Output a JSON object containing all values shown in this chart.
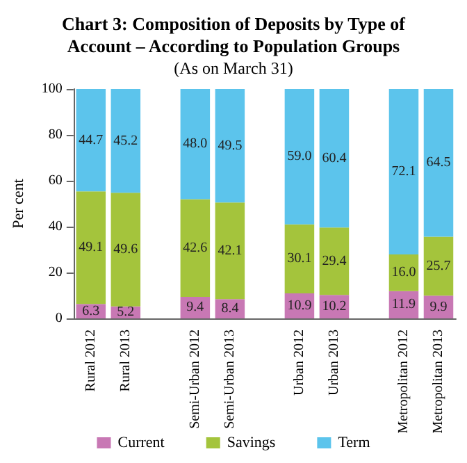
{
  "chart_data": {
    "type": "bar",
    "title": "Chart 3: Composition of Deposits by Type of Account – According to Population Groups",
    "subtitle": "(As on March 31)",
    "ylabel": "Per cent",
    "categories": [
      "Rural 2012",
      "Rural 2013",
      null,
      "Semi-Urban 2012",
      "Semi-Urban 2013",
      null,
      "Urban 2012",
      "Urban 2013",
      null,
      "Metropolitan 2012",
      "Metropolitan 2013"
    ],
    "stacked": true,
    "ylim": [
      0,
      100
    ],
    "yticks": [
      0,
      20,
      40,
      60,
      80,
      100
    ],
    "grid": false,
    "legend": "bottom",
    "series": [
      {
        "name": "Current",
        "color": "#c878b4",
        "values": [
          6.3,
          5.2,
          null,
          9.4,
          8.4,
          null,
          10.9,
          10.2,
          null,
          11.9,
          9.9
        ],
        "value_labels": [
          "6.3",
          "5.2",
          null,
          "9.4",
          "8.4",
          null,
          "10.9",
          "10.2",
          null,
          "11.9",
          "9.9"
        ]
      },
      {
        "name": "Savings",
        "color": "#a4c43c",
        "values": [
          49.1,
          49.6,
          null,
          42.6,
          42.1,
          null,
          30.1,
          29.4,
          null,
          16.0,
          25.7
        ],
        "value_labels": [
          "49.1",
          "49.6",
          null,
          "42.6",
          "42.1",
          null,
          "30.1",
          "29.4",
          null,
          "16.0",
          "25.7"
        ]
      },
      {
        "name": "Term",
        "color": "#5cc4ec",
        "values": [
          44.7,
          45.2,
          null,
          48.0,
          49.5,
          null,
          59.0,
          60.4,
          null,
          72.1,
          64.5
        ],
        "value_labels": [
          "44.7",
          "45.2",
          null,
          "48.0",
          "49.5",
          null,
          "59.0",
          "60.4",
          null,
          "72.1",
          "64.5"
        ]
      }
    ]
  }
}
